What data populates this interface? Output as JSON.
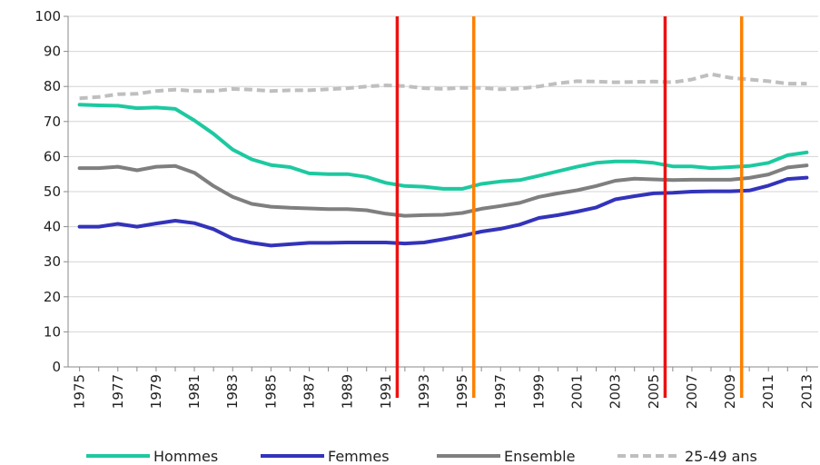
{
  "chart_data": {
    "type": "line",
    "title": "",
    "xlabel": "",
    "ylabel": "",
    "ylim": [
      0,
      100
    ],
    "yticks": [
      0,
      10,
      20,
      30,
      40,
      50,
      60,
      70,
      80,
      90,
      100
    ],
    "x_range": [
      1975,
      2013
    ],
    "xtick_labels": [
      "1975",
      "1977",
      "1979",
      "1981",
      "1983",
      "1985",
      "1987",
      "1989",
      "1991",
      "1993",
      "1995",
      "1997",
      "1999",
      "2001",
      "2003",
      "2005",
      "2007",
      "2009",
      "2011",
      "2013"
    ],
    "grid": "horizontal",
    "legend_position": "bottom",
    "x": [
      1975,
      1976,
      1977,
      1978,
      1979,
      1980,
      1981,
      1982,
      1983,
      1984,
      1985,
      1986,
      1987,
      1988,
      1989,
      1990,
      1991,
      1992,
      1993,
      1994,
      1995,
      1996,
      1997,
      1998,
      1999,
      2000,
      2001,
      2002,
      2003,
      2004,
      2005,
      2006,
      2007,
      2008,
      2009,
      2010,
      2011,
      2012,
      2013
    ],
    "series": [
      {
        "name": "Hommes",
        "color": "#1dc9a0",
        "style": "solid",
        "values": [
          74.8,
          74.6,
          74.5,
          73.8,
          74.0,
          73.6,
          70.3,
          66.5,
          62.0,
          59.2,
          57.6,
          57.0,
          55.2,
          55.0,
          55.0,
          54.2,
          52.5,
          51.6,
          51.4,
          50.8,
          50.8,
          52.2,
          52.9,
          53.3,
          54.5,
          55.8,
          57.1,
          58.2,
          58.6,
          58.6,
          58.2,
          57.2,
          57.2,
          56.7,
          57.0,
          57.3,
          58.2,
          60.4,
          61.2
        ]
      },
      {
        "name": "Femmes",
        "color": "#3333bb",
        "style": "solid",
        "values": [
          40.0,
          40.0,
          40.8,
          40.0,
          40.9,
          41.7,
          41.0,
          39.3,
          36.6,
          35.4,
          34.6,
          35.0,
          35.4,
          35.4,
          35.5,
          35.5,
          35.5,
          35.2,
          35.5,
          36.4,
          37.4,
          38.6,
          39.4,
          40.6,
          42.5,
          43.3,
          44.3,
          45.5,
          47.8,
          48.7,
          49.5,
          49.7,
          50.0,
          50.1,
          50.1,
          50.3,
          51.7,
          53.6,
          54.0
        ]
      },
      {
        "name": "Ensemble",
        "color": "#7f7f7f",
        "style": "solid",
        "values": [
          56.7,
          56.7,
          57.1,
          56.1,
          57.1,
          57.3,
          55.4,
          51.6,
          48.5,
          46.5,
          45.7,
          45.4,
          45.2,
          45.0,
          45.0,
          44.7,
          43.7,
          43.1,
          43.3,
          43.4,
          43.9,
          45.1,
          45.9,
          46.8,
          48.5,
          49.5,
          50.4,
          51.6,
          53.1,
          53.7,
          53.5,
          53.3,
          53.4,
          53.4,
          53.4,
          53.9,
          54.9,
          56.9,
          57.5
        ]
      },
      {
        "name": "25-49 ans",
        "color": "#bfbfbf",
        "style": "dashed",
        "values": [
          76.6,
          77.0,
          77.8,
          77.9,
          78.7,
          79.1,
          78.7,
          78.7,
          79.3,
          79.1,
          78.7,
          78.9,
          78.9,
          79.2,
          79.5,
          80.0,
          80.3,
          80.1,
          79.5,
          79.3,
          79.6,
          79.6,
          79.2,
          79.4,
          80.0,
          80.9,
          81.5,
          81.4,
          81.2,
          81.3,
          81.4,
          81.2,
          82.0,
          83.5,
          82.5,
          82.0,
          81.5,
          80.8,
          80.8
        ]
      }
    ],
    "vertical_markers": [
      {
        "x": 1991.6,
        "color": "#ee1111"
      },
      {
        "x": 1995.6,
        "color": "#ff7f00"
      },
      {
        "x": 2005.6,
        "color": "#ee1111"
      },
      {
        "x": 2009.6,
        "color": "#ff7f00"
      }
    ]
  }
}
